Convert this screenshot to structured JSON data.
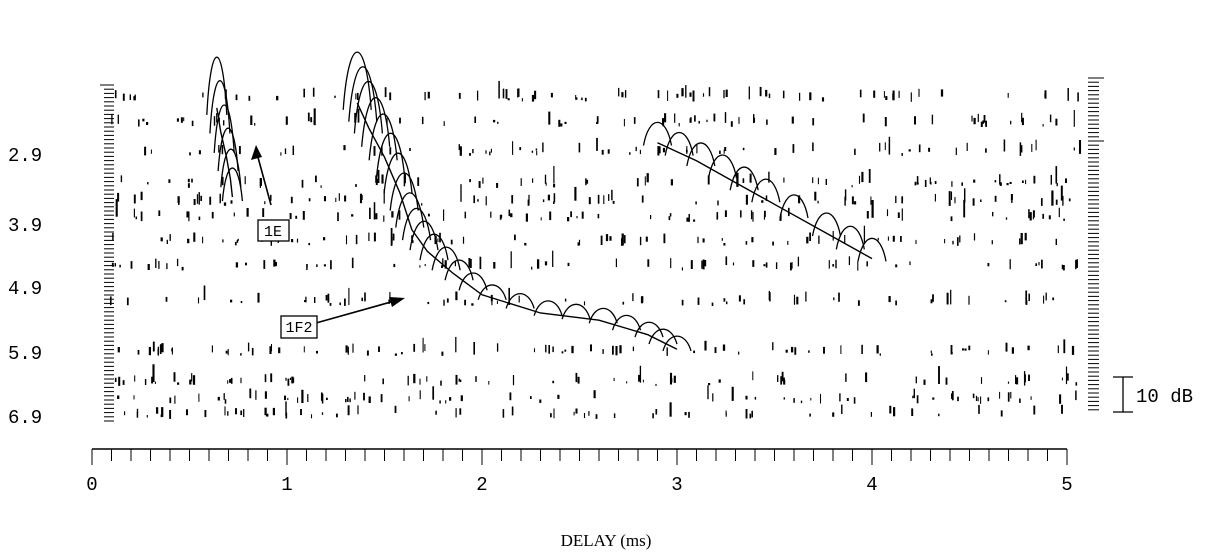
{
  "chart_data": {
    "type": "line",
    "title": "",
    "xlabel": "DELAY (ms)",
    "ylabel": "",
    "xlim": [
      0,
      5
    ],
    "ylim": [
      2.4,
      6.9
    ],
    "x_ticks": [
      "0",
      "1",
      "2",
      "3",
      "4",
      "5"
    ],
    "y_ticks": [
      "2.9",
      "3.9",
      "4.9",
      "5.9",
      "6.9"
    ],
    "scale_bar": "10 dB",
    "series": [
      {
        "name": "1E",
        "points": [
          [
            0.64,
            2.62
          ],
          [
            0.66,
            2.95
          ],
          [
            0.69,
            3.3
          ],
          [
            0.71,
            3.6
          ],
          [
            0.72,
            3.85
          ]
        ]
      },
      {
        "name": "1F2",
        "points": [
          [
            1.36,
            2.55
          ],
          [
            1.42,
            2.9
          ],
          [
            1.5,
            3.3
          ],
          [
            1.58,
            3.8
          ],
          [
            1.64,
            4.3
          ],
          [
            1.72,
            4.6
          ],
          [
            1.85,
            4.9
          ],
          [
            2.0,
            5.2
          ],
          [
            2.3,
            5.45
          ],
          [
            2.6,
            5.55
          ],
          [
            2.85,
            5.75
          ],
          [
            3.0,
            5.95
          ]
        ]
      },
      {
        "name": "",
        "points": [
          [
            2.9,
            3.1
          ],
          [
            3.1,
            3.35
          ],
          [
            3.3,
            3.65
          ],
          [
            3.5,
            3.95
          ],
          [
            3.8,
            4.4
          ],
          [
            4.0,
            4.7
          ]
        ]
      }
    ],
    "annotations": [
      {
        "label": "1E",
        "points_to_x": 0.84,
        "points_to_y": 3.1
      },
      {
        "label": "1F2",
        "points_to_x": 1.64,
        "points_to_y": 4.98
      }
    ]
  }
}
